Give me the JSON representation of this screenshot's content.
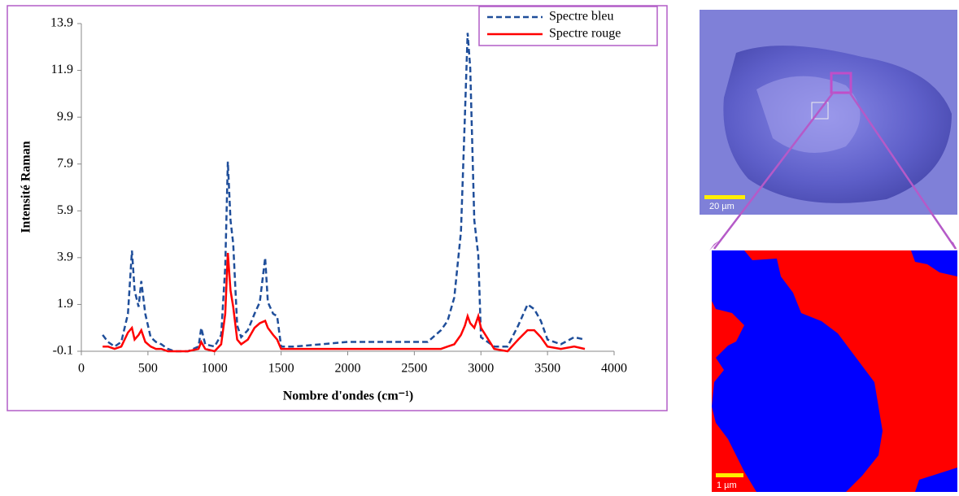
{
  "chart_data": {
    "type": "line",
    "x_label": "Nombre d'ondes (cm⁻¹)",
    "y_label": "Intensité Raman",
    "x": [
      160,
      200,
      250,
      300,
      350,
      380,
      400,
      430,
      450,
      480,
      520,
      560,
      600,
      650,
      700,
      800,
      880,
      900,
      930,
      1000,
      1050,
      1080,
      1100,
      1120,
      1140,
      1170,
      1200,
      1250,
      1300,
      1340,
      1380,
      1400,
      1440,
      1470,
      1500,
      1600,
      1800,
      2000,
      2200,
      2400,
      2600,
      2700,
      2750,
      2800,
      2850,
      2880,
      2900,
      2920,
      2950,
      2980,
      3000,
      3100,
      3200,
      3280,
      3350,
      3400,
      3450,
      3500,
      3600,
      3700,
      3780
    ],
    "series": [
      {
        "name": "Spectre bleu",
        "color": "#1f4e9a",
        "dash": true,
        "values": [
          0.6,
          0.3,
          0.1,
          0.3,
          1.5,
          4.2,
          2.5,
          1.8,
          2.9,
          1.5,
          0.5,
          0.3,
          0.2,
          0.0,
          -0.1,
          -0.1,
          0.1,
          0.9,
          0.2,
          0.1,
          0.6,
          3.5,
          8.0,
          5.5,
          4.5,
          1.0,
          0.5,
          0.8,
          1.5,
          2.0,
          3.9,
          2.0,
          1.5,
          1.4,
          0.1,
          0.1,
          0.2,
          0.3,
          0.3,
          0.3,
          0.3,
          0.8,
          1.2,
          2.2,
          5.0,
          10.0,
          13.5,
          12.0,
          5.5,
          4.0,
          0.5,
          0.1,
          0.1,
          1.0,
          1.9,
          1.7,
          1.2,
          0.4,
          0.2,
          0.5,
          0.4
        ]
      },
      {
        "name": "Spectre rouge",
        "color": "#ff0000",
        "dash": false,
        "values": [
          0.1,
          0.1,
          0.0,
          0.1,
          0.7,
          0.9,
          0.4,
          0.6,
          0.8,
          0.3,
          0.1,
          0.0,
          0.0,
          -0.1,
          -0.1,
          -0.1,
          0.0,
          0.3,
          0.0,
          -0.1,
          0.2,
          1.5,
          4.1,
          2.5,
          1.8,
          0.4,
          0.2,
          0.4,
          0.9,
          1.1,
          1.2,
          0.9,
          0.6,
          0.4,
          0.0,
          0.0,
          0.0,
          0.0,
          0.0,
          0.0,
          0.0,
          0.0,
          0.1,
          0.2,
          0.6,
          1.0,
          1.4,
          1.1,
          0.9,
          1.4,
          0.9,
          0.0,
          -0.1,
          0.4,
          0.8,
          0.8,
          0.5,
          0.1,
          0.0,
          0.1,
          0.0
        ]
      }
    ],
    "xlim": [
      0,
      4000
    ],
    "xticks": [
      0,
      500,
      1000,
      1500,
      2000,
      2500,
      3000,
      3500,
      4000
    ],
    "ylim": [
      -0.1,
      13.9
    ],
    "yticks": [
      -0.1,
      1.9,
      3.9,
      5.9,
      7.9,
      9.9,
      11.9,
      13.9
    ],
    "legend": "top-right"
  },
  "images": {
    "microscope_scale": "20 µm",
    "map_scale": "1 µm"
  }
}
